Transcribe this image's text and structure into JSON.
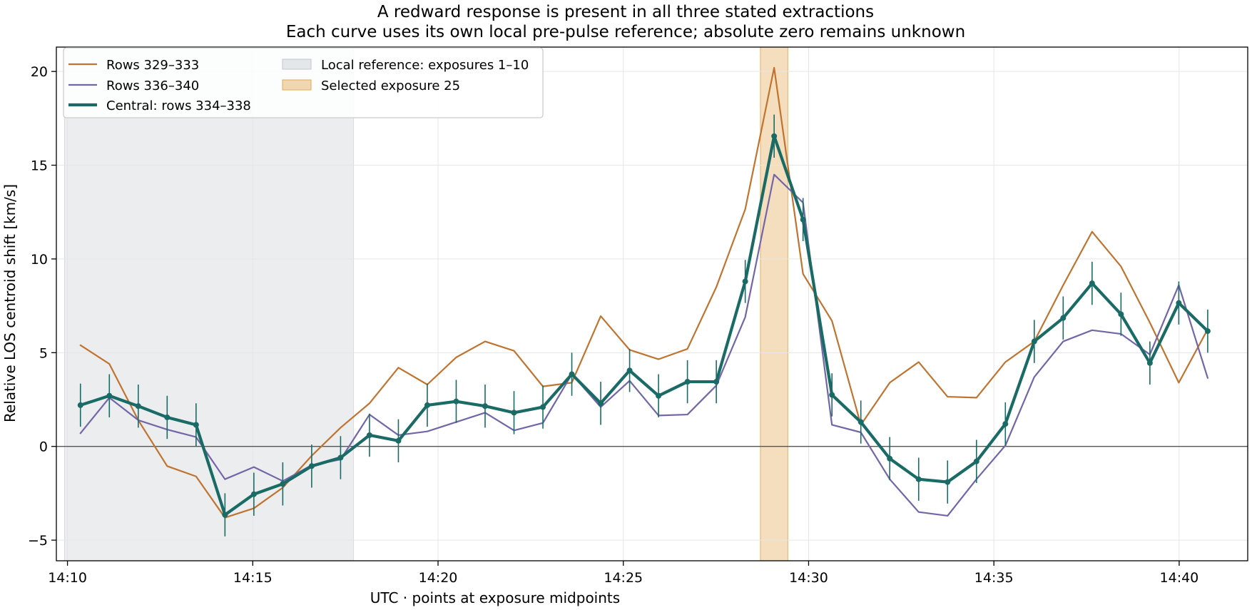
{
  "chart_data": {
    "type": "line",
    "title": "A redward response is present in all three stated extractions",
    "subtitle": "Each curve uses its own local pre-pulse reference; absolute zero remains unknown",
    "xlabel": "UTC · points at exposure midpoints",
    "ylabel": "Relative LOS centroid shift [km/s]",
    "x_unit": "minutes past 14:00 UTC",
    "xlim": [
      9.7,
      41.85
    ],
    "ylim": [
      -6.1,
      21.3
    ],
    "x_ticks": [
      {
        "value": 10,
        "label": "14:10"
      },
      {
        "value": 15,
        "label": "14:15"
      },
      {
        "value": 20,
        "label": "14:20"
      },
      {
        "value": 25,
        "label": "14:25"
      },
      {
        "value": 30,
        "label": "14:30"
      },
      {
        "value": 35,
        "label": "14:35"
      },
      {
        "value": 40,
        "label": "14:40"
      }
    ],
    "y_ticks": [
      {
        "value": -5,
        "label": "−5"
      },
      {
        "value": 0,
        "label": "0"
      },
      {
        "value": 5,
        "label": "5"
      },
      {
        "value": 10,
        "label": "10"
      },
      {
        "value": 15,
        "label": "15"
      },
      {
        "value": 20,
        "label": "20"
      }
    ],
    "grid": true,
    "zero_line": true,
    "legend_position": "top-left",
    "x": [
      10.35,
      11.13,
      11.91,
      12.69,
      13.47,
      14.25,
      15.03,
      15.81,
      16.59,
      17.37,
      18.15,
      18.93,
      19.71,
      20.49,
      21.27,
      22.05,
      22.83,
      23.61,
      24.39,
      25.17,
      25.95,
      26.73,
      27.51,
      28.29,
      29.07,
      29.85,
      30.63,
      31.41,
      32.19,
      32.97,
      33.75,
      34.53,
      35.31,
      36.09,
      36.87,
      37.65,
      38.43,
      39.21,
      39.99,
      40.77
    ],
    "series": [
      {
        "name": "Rows 329–333",
        "color": "#bf7430",
        "line_width": 2.2,
        "values": [
          5.4,
          4.4,
          1.4,
          -1.05,
          -1.6,
          -3.8,
          -3.3,
          -2.2,
          -0.5,
          1.0,
          2.3,
          4.2,
          3.3,
          4.75,
          5.6,
          5.1,
          3.2,
          3.4,
          6.95,
          5.15,
          4.65,
          5.2,
          8.5,
          12.65,
          20.2,
          9.2,
          6.7,
          1.15,
          3.4,
          4.5,
          2.65,
          2.6,
          4.5,
          5.6,
          8.6,
          11.45,
          9.6,
          6.6,
          3.4,
          6.25
        ]
      },
      {
        "name": "Rows 336–340",
        "color": "#7366a8",
        "line_width": 2.2,
        "values": [
          0.7,
          2.6,
          1.4,
          0.9,
          0.5,
          -1.75,
          -1.1,
          -1.85,
          -1.0,
          -0.7,
          1.7,
          0.6,
          0.8,
          1.3,
          1.8,
          0.85,
          1.25,
          3.85,
          2.1,
          3.5,
          1.65,
          1.7,
          3.25,
          6.9,
          14.5,
          13.0,
          1.15,
          0.75,
          -1.75,
          -3.5,
          -3.7,
          -1.75,
          0.05,
          3.7,
          5.6,
          6.2,
          6.0,
          4.9,
          8.6,
          3.65
        ]
      },
      {
        "name": "Central: rows 334–338",
        "color": "#1a6b65",
        "line_width": 4.2,
        "markers": true,
        "values": [
          2.2,
          2.7,
          2.15,
          1.55,
          1.15,
          -3.65,
          -2.55,
          -2.0,
          -1.05,
          -0.6,
          0.6,
          0.3,
          2.2,
          2.4,
          2.15,
          1.8,
          2.1,
          3.85,
          2.3,
          4.05,
          2.7,
          3.45,
          3.45,
          8.8,
          16.55,
          12.1,
          2.75,
          1.3,
          -0.65,
          -1.75,
          -1.9,
          -0.8,
          1.2,
          5.6,
          6.85,
          8.7,
          7.05,
          4.45,
          7.65,
          6.15
        ],
        "error": 1.15
      }
    ],
    "shaded_regions": [
      {
        "name": "Local reference: exposures 1–10",
        "x_start": 9.92,
        "x_end": 17.72,
        "color": "#d4d8dc",
        "opacity": 0.45
      },
      {
        "name": "Selected exposure 25",
        "x_start": 28.7,
        "x_end": 29.44,
        "color": "#e5a855",
        "opacity": 0.38
      }
    ]
  }
}
